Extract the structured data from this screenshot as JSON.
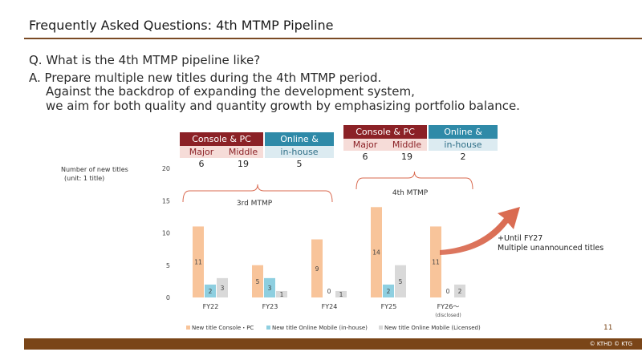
{
  "header": {
    "title": "Frequently Asked Questions: 4th MTMP Pipeline"
  },
  "qa": {
    "question": "Q. What is the 4th MTMP pipeline like?",
    "answer_line1": "A. Prepare multiple new titles during the 4th MTMP period.",
    "answer_line2": "Against the backdrop of expanding the development system,",
    "answer_line3": "we aim for both quality and quantity growth by emphasizing portfolio balance."
  },
  "table_3rd": {
    "console_pc": "Console & PC",
    "online_mobile": "Online & Mobile",
    "major": "Major",
    "middle": "Middle",
    "inhouse": "in-house",
    "major_count": "6",
    "middle_count": "19",
    "inhouse_count": "5"
  },
  "table_4th": {
    "console_pc": "Console & PC",
    "online_mobile": "Online & Mobile",
    "major": "Major",
    "middle": "Middle",
    "inhouse": "in-house",
    "major_count": "6",
    "middle_count": "19",
    "inhouse_count": "2"
  },
  "axis": {
    "title_line1": "Number of new titles",
    "title_line2": "(unit: 1 title)"
  },
  "brackets": {
    "third": "3rd MTMP",
    "fourth": "4th MTMP"
  },
  "annotation": {
    "line1": "+Until FY27",
    "line2": "Multiple unannounced titles"
  },
  "footer": {
    "page": "11",
    "copyright": "© KTHD © KTG"
  },
  "colors": {
    "console": "#f8c49a",
    "online_inhouse": "#8ecfe0",
    "online_licensed": "#d9d9d9",
    "arrow": "#d9694f",
    "bracket": "#d9694f"
  },
  "chart_data": {
    "type": "bar",
    "categories": [
      "FY22",
      "FY23",
      "FY24",
      "FY25",
      "FY26〜"
    ],
    "category_notes": [
      "",
      "",
      "",
      "",
      "(disclosed)"
    ],
    "series": [
      {
        "name": "New title Console・PC",
        "values": [
          11,
          5,
          9,
          14,
          11
        ],
        "color": "#f8c49a"
      },
      {
        "name": "New title Online Mobile (in-house)",
        "values": [
          2,
          3,
          0,
          2,
          0
        ],
        "color": "#8ecfe0"
      },
      {
        "name": "New title Online Mobile (Licensed)",
        "values": [
          3,
          1,
          1,
          5,
          2
        ],
        "color": "#d9d9d9"
      }
    ],
    "ylim": [
      0,
      20
    ],
    "yticks": [
      0,
      5,
      10,
      15,
      20
    ],
    "grid": false,
    "legend_position": "bottom"
  }
}
